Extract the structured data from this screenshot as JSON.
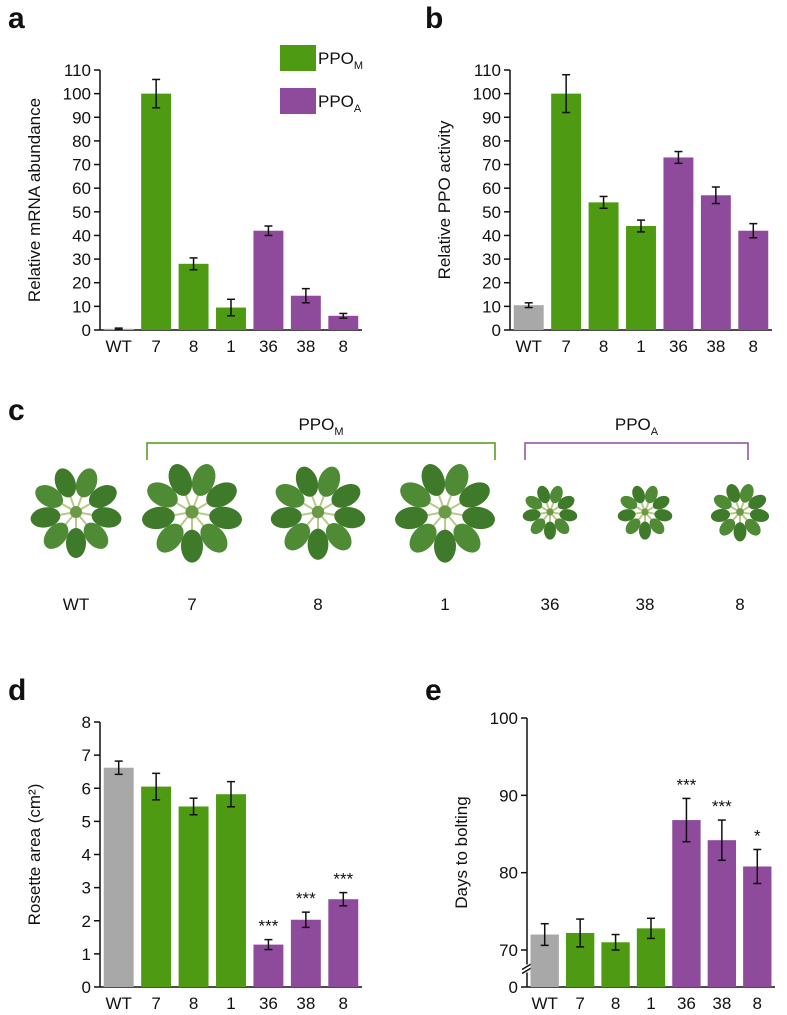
{
  "chart_data": [
    {
      "type": "bar",
      "panel": "a",
      "ylabel": "Relative mRNA abundance",
      "categories": [
        "WT",
        "7",
        "8",
        "1",
        "36",
        "38",
        "8"
      ],
      "values": [
        0.5,
        100,
        28,
        9.5,
        42,
        14.5,
        6
      ],
      "errors": [
        0.3,
        6,
        2.5,
        3.5,
        2,
        3,
        1
      ],
      "colors": [
        "#a8a8a8",
        "#4e9a13",
        "#4e9a13",
        "#4e9a13",
        "#8e4b9b",
        "#8e4b9b",
        "#8e4b9b"
      ],
      "ylim": [
        0,
        110
      ],
      "yticks": [
        0,
        10,
        20,
        30,
        40,
        50,
        60,
        70,
        80,
        90,
        100,
        110
      ],
      "legend": [
        {
          "label": "PPO",
          "subscript": "M",
          "color": "#4e9a13"
        },
        {
          "label": "PPO",
          "subscript": "A",
          "color": "#8e4b9b"
        }
      ]
    },
    {
      "type": "bar",
      "panel": "b",
      "ylabel": "Relative PPO activity",
      "categories": [
        "WT",
        "7",
        "8",
        "1",
        "36",
        "38",
        "8"
      ],
      "values": [
        10.5,
        100,
        54,
        44,
        73,
        57,
        42
      ],
      "errors": [
        1,
        8,
        2.5,
        2.5,
        2.5,
        3.5,
        3
      ],
      "colors": [
        "#a8a8a8",
        "#4e9a13",
        "#4e9a13",
        "#4e9a13",
        "#8e4b9b",
        "#8e4b9b",
        "#8e4b9b"
      ],
      "ylim": [
        0,
        110
      ],
      "yticks": [
        0,
        10,
        20,
        30,
        40,
        50,
        60,
        70,
        80,
        90,
        100,
        110
      ]
    },
    {
      "type": "bar",
      "panel": "d",
      "ylabel": "Rosette area (cm²)",
      "categories": [
        "WT",
        "7",
        "8",
        "1",
        "36",
        "38",
        "8"
      ],
      "values": [
        6.62,
        6.05,
        5.45,
        5.82,
        1.28,
        2.03,
        2.65
      ],
      "errors": [
        0.2,
        0.4,
        0.25,
        0.38,
        0.15,
        0.23,
        0.2
      ],
      "annotations": [
        null,
        null,
        null,
        null,
        "***",
        "***",
        "***"
      ],
      "colors": [
        "#a8a8a8",
        "#4e9a13",
        "#4e9a13",
        "#4e9a13",
        "#8e4b9b",
        "#8e4b9b",
        "#8e4b9b"
      ],
      "ylim": [
        0,
        8
      ],
      "yticks": [
        0,
        1,
        2,
        3,
        4,
        5,
        6,
        7,
        8
      ]
    },
    {
      "type": "bar",
      "panel": "e",
      "ylabel": "Days to bolting",
      "categories": [
        "WT",
        "7",
        "8",
        "1",
        "36",
        "38",
        "8"
      ],
      "values": [
        72,
        72.2,
        71,
        72.8,
        86.8,
        84.2,
        80.8
      ],
      "errors": [
        1.4,
        1.8,
        1,
        1.3,
        2.8,
        2.6,
        2.2
      ],
      "annotations": [
        null,
        null,
        null,
        null,
        "***",
        "***",
        "*"
      ],
      "colors": [
        "#a8a8a8",
        "#4e9a13",
        "#4e9a13",
        "#4e9a13",
        "#8e4b9b",
        "#8e4b9b",
        "#8e4b9b"
      ],
      "ylim": [
        0,
        100
      ],
      "ybreak": [
        0,
        70
      ],
      "yticks": [
        0,
        70,
        80,
        90,
        100
      ]
    }
  ],
  "panel_c": {
    "panel": "c",
    "groups": [
      {
        "label": "PPO",
        "subscript": "M",
        "color": "#4e9a13"
      },
      {
        "label": "PPO",
        "subscript": "A",
        "color": "#8e4b9b"
      }
    ],
    "labels": [
      "WT",
      "7",
      "8",
      "1",
      "36",
      "38",
      "8"
    ]
  }
}
